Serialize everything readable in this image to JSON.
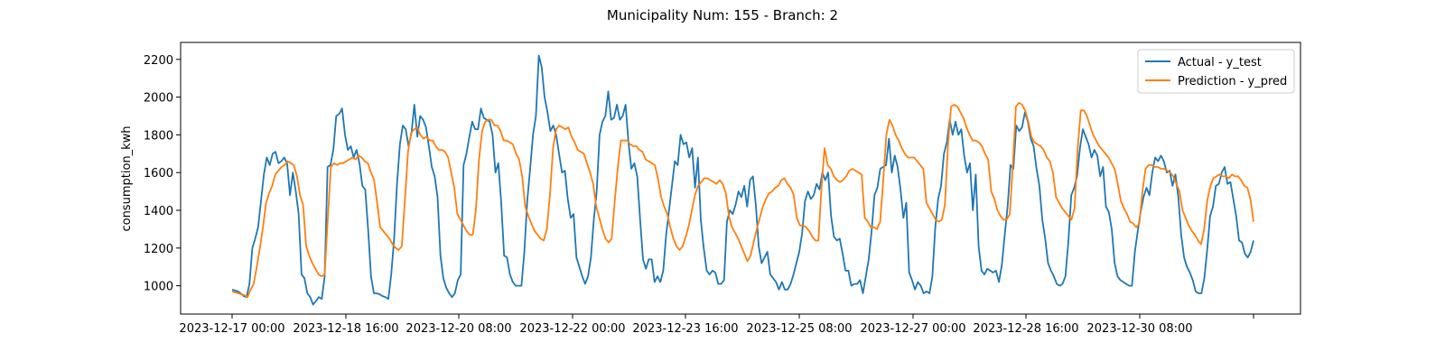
{
  "chart_data": {
    "type": "line",
    "title": "Municipality Num: 155 - Branch: 2",
    "xlabel": "",
    "ylabel": "consumption_kwh",
    "ylim": [
      850,
      2290
    ],
    "yticks": [
      1000,
      1200,
      1400,
      1600,
      1800,
      2000,
      2200
    ],
    "x_ticklabels": [
      "2023-12-17 00:00",
      "2023-12-18 16:00",
      "2023-12-20 08:00",
      "2023-12-22 00:00",
      "2023-12-23 16:00",
      "2023-12-25 08:00",
      "2023-12-27 00:00",
      "2023-12-28 16:00",
      "2023-12-30 08:00",
      ""
    ],
    "x_start": "2023-12-17 00:00",
    "x_step_hours": 1,
    "grid": false,
    "legend_position": "upper right",
    "colors": {
      "actual": "#1f77b4",
      "prediction": "#ff7f0e"
    },
    "series": [
      {
        "name": "Actual - y_test",
        "key": "actual",
        "values": [
          980,
          975,
          970,
          960,
          945,
          940,
          1010,
          1200,
          1250,
          1310,
          1450,
          1590,
          1680,
          1640,
          1700,
          1710,
          1650,
          1660,
          1680,
          1650,
          1480,
          1600,
          1500,
          1380,
          1060,
          1040,
          960,
          940,
          900,
          920,
          940,
          930,
          1050,
          1630,
          1640,
          1720,
          1900,
          1910,
          1940,
          1800,
          1720,
          1740,
          1680,
          1720,
          1650,
          1530,
          1510,
          1300,
          1050,
          960,
          960,
          955,
          945,
          940,
          930,
          1060,
          1250,
          1540,
          1750,
          1850,
          1830,
          1740,
          1810,
          1960,
          1790,
          1900,
          1880,
          1840,
          1740,
          1630,
          1580,
          1470,
          1160,
          1040,
          990,
          960,
          940,
          960,
          1030,
          1060,
          1640,
          1700,
          1790,
          1870,
          1830,
          1830,
          1940,
          1890,
          1880,
          1870,
          1800,
          1600,
          1650,
          1440,
          1160,
          1150,
          1060,
          1020,
          1000,
          1000,
          1000,
          1180,
          1450,
          1620,
          1800,
          1900,
          2220,
          2160,
          2000,
          1920,
          1820,
          1850,
          1800,
          1700,
          1600,
          1610,
          1460,
          1360,
          1380,
          1150,
          1100,
          1050,
          1010,
          1050,
          1150,
          1350,
          1500,
          1800,
          1870,
          1900,
          2030,
          1880,
          1890,
          1960,
          1880,
          1900,
          1960,
          1760,
          1620,
          1650,
          1580,
          1350,
          1140,
          1090,
          1140,
          1140,
          1020,
          1050,
          1020,
          1080,
          1270,
          1400,
          1530,
          1660,
          1640,
          1800,
          1750,
          1760,
          1680,
          1730,
          1520,
          1680,
          1350,
          1200,
          1080,
          1060,
          1080,
          1070,
          1010,
          1010,
          1030,
          1340,
          1400,
          1380,
          1430,
          1500,
          1470,
          1530,
          1420,
          1560,
          1580,
          1430,
          1210,
          1120,
          1150,
          1180,
          1060,
          1040,
          1020,
          980,
          1020,
          980,
          980,
          1010,
          1060,
          1120,
          1180,
          1280,
          1450,
          1500,
          1460,
          1480,
          1540,
          1510,
          1600,
          1560,
          1600,
          1370,
          1260,
          1240,
          1250,
          1170,
          1080,
          1080,
          1000,
          1010,
          1010,
          1030,
          960,
          1050,
          1140,
          1290,
          1480,
          1520,
          1620,
          1630,
          1640,
          1780,
          1600,
          1690,
          1630,
          1510,
          1360,
          1440,
          1070,
          1030,
          980,
          1020,
          1000,
          960,
          970,
          960,
          1050,
          1310,
          1460,
          1530,
          1700,
          1760,
          1880,
          1800,
          1870,
          1800,
          1830,
          1690,
          1600,
          1650,
          1400,
          1590,
          1210,
          1080,
          1060,
          1090,
          1080,
          1070,
          1080,
          1020,
          1110,
          1270,
          1420,
          1640,
          1620,
          1850,
          1820,
          1840,
          1920,
          1870,
          1780,
          1740,
          1620,
          1530,
          1350,
          1250,
          1120,
          1080,
          1050,
          1010,
          1000,
          1010,
          1050,
          1230,
          1480,
          1520,
          1580,
          1730,
          1830,
          1790,
          1750,
          1680,
          1720,
          1690,
          1580,
          1630,
          1420,
          1390,
          1300,
          1120,
          1050,
          1030,
          1020,
          1010,
          1000,
          1000,
          1180,
          1290,
          1390,
          1470,
          1520,
          1480,
          1600,
          1680,
          1660,
          1690,
          1660,
          1600,
          1610,
          1530,
          1590,
          1470,
          1270,
          1150,
          1100,
          1070,
          1030,
          970,
          960,
          960,
          1040,
          1190,
          1370,
          1420,
          1530,
          1540,
          1600,
          1630,
          1540,
          1550,
          1460,
          1370,
          1240,
          1230,
          1170,
          1150,
          1180,
          1240
        ]
      },
      {
        "name": "Prediction - y_pred",
        "key": "prediction",
        "values": [
          970,
          965,
          960,
          955,
          950,
          940,
          980,
          1010,
          1100,
          1200,
          1310,
          1440,
          1490,
          1530,
          1590,
          1610,
          1630,
          1640,
          1660,
          1650,
          1640,
          1580,
          1480,
          1430,
          1210,
          1160,
          1120,
          1090,
          1060,
          1050,
          1060,
          1350,
          1630,
          1650,
          1640,
          1650,
          1650,
          1660,
          1670,
          1680,
          1670,
          1690,
          1680,
          1660,
          1650,
          1600,
          1560,
          1440,
          1310,
          1290,
          1270,
          1250,
          1220,
          1200,
          1190,
          1210,
          1450,
          1710,
          1810,
          1830,
          1840,
          1800,
          1780,
          1790,
          1770,
          1770,
          1740,
          1720,
          1720,
          1710,
          1680,
          1600,
          1520,
          1380,
          1350,
          1320,
          1290,
          1270,
          1270,
          1400,
          1670,
          1820,
          1870,
          1880,
          1880,
          1850,
          1850,
          1820,
          1770,
          1770,
          1760,
          1750,
          1700,
          1670,
          1580,
          1420,
          1370,
          1330,
          1290,
          1270,
          1250,
          1240,
          1300,
          1480,
          1730,
          1830,
          1850,
          1840,
          1830,
          1840,
          1790,
          1760,
          1720,
          1710,
          1700,
          1650,
          1600,
          1540,
          1420,
          1360,
          1300,
          1250,
          1230,
          1250,
          1450,
          1630,
          1770,
          1770,
          1770,
          1750,
          1740,
          1740,
          1720,
          1710,
          1670,
          1660,
          1650,
          1640,
          1570,
          1470,
          1420,
          1380,
          1310,
          1250,
          1210,
          1190,
          1210,
          1260,
          1320,
          1400,
          1480,
          1530,
          1550,
          1570,
          1570,
          1560,
          1550,
          1540,
          1560,
          1540,
          1490,
          1370,
          1310,
          1280,
          1250,
          1210,
          1170,
          1130,
          1160,
          1230,
          1300,
          1360,
          1420,
          1460,
          1490,
          1500,
          1520,
          1530,
          1560,
          1570,
          1540,
          1520,
          1480,
          1360,
          1320,
          1320,
          1310,
          1290,
          1260,
          1240,
          1240,
          1520,
          1730,
          1640,
          1620,
          1580,
          1560,
          1550,
          1560,
          1580,
          1610,
          1620,
          1610,
          1600,
          1590,
          1360,
          1340,
          1310,
          1310,
          1300,
          1340,
          1560,
          1800,
          1880,
          1850,
          1800,
          1770,
          1730,
          1700,
          1680,
          1680,
          1680,
          1660,
          1640,
          1620,
          1440,
          1410,
          1380,
          1350,
          1340,
          1350,
          1430,
          1750,
          1950,
          1960,
          1950,
          1920,
          1890,
          1840,
          1800,
          1770,
          1770,
          1760,
          1740,
          1700,
          1670,
          1500,
          1460,
          1400,
          1370,
          1350,
          1350,
          1380,
          1640,
          1950,
          1970,
          1960,
          1930,
          1870,
          1790,
          1760,
          1750,
          1740,
          1720,
          1680,
          1660,
          1600,
          1470,
          1440,
          1410,
          1390,
          1370,
          1350,
          1410,
          1720,
          1930,
          1930,
          1900,
          1850,
          1800,
          1770,
          1740,
          1720,
          1700,
          1680,
          1650,
          1620,
          1540,
          1450,
          1410,
          1380,
          1340,
          1330,
          1310,
          1330,
          1500,
          1620,
          1640,
          1640,
          1630,
          1630,
          1620,
          1620,
          1610,
          1600,
          1580,
          1540,
          1500,
          1400,
          1360,
          1320,
          1290,
          1270,
          1240,
          1220,
          1300,
          1450,
          1530,
          1570,
          1580,
          1590,
          1580,
          1580,
          1570,
          1590,
          1580,
          1580,
          1560,
          1530,
          1520,
          1460,
          1340
        ]
      }
    ]
  }
}
